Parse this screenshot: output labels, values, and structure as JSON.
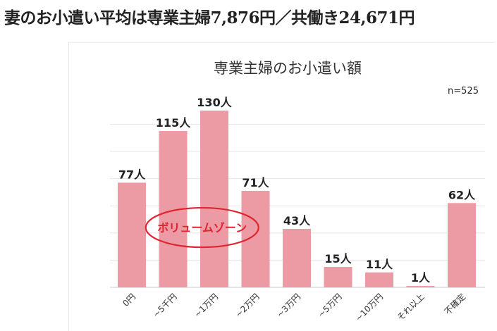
{
  "headline": "妻のお小遣い平均は専業主婦7,876円／共働き24,671円",
  "chart_data": {
    "type": "bar",
    "title": "専業主婦のお小遣い額",
    "sample_size": "n=525",
    "categories": [
      "0円",
      "~5千円",
      "~1万円",
      "~2万円",
      "~3万円",
      "~5万円",
      "~10万円",
      "それ以上",
      "不確定"
    ],
    "values": [
      77,
      115,
      130,
      71,
      43,
      15,
      11,
      1,
      62
    ],
    "value_labels": [
      "77人",
      "115人",
      "130人",
      "71人",
      "43人",
      "15人",
      "11人",
      "1人",
      "62人"
    ],
    "ylim": [
      0,
      140
    ],
    "grid": true,
    "bar_color": "#ec9aa3",
    "annotation": {
      "text": "ボリュームゾーン",
      "color": "#e0242f",
      "highlights": [
        "~5千円",
        "~1万円"
      ]
    }
  }
}
